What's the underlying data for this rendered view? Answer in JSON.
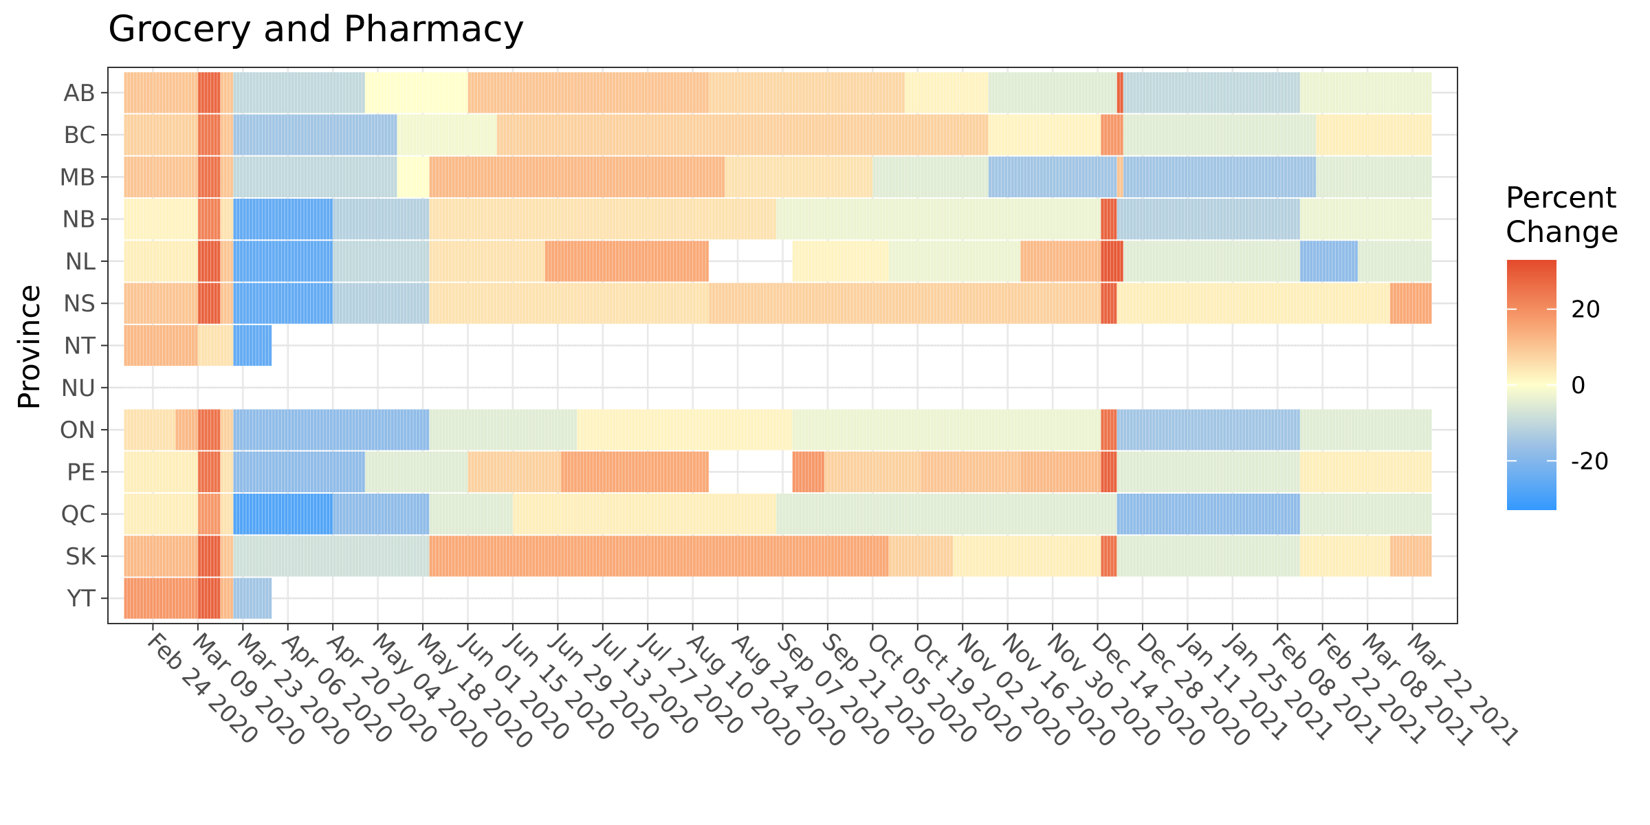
{
  "chart_data": {
    "type": "heatmap",
    "title": "Grocery and Pharmacy",
    "xlabel": "",
    "ylabel": "Province",
    "x_tick_labels": [
      "Feb 24 2020",
      "Mar 09 2020",
      "Mar 23 2020",
      "Apr 06 2020",
      "Apr 20 2020",
      "May 04 2020",
      "May 18 2020",
      "Jun 01 2020",
      "Jun 15 2020",
      "Jun 29 2020",
      "Jul 13 2020",
      "Jul 27 2020",
      "Aug 10 2020",
      "Aug 24 2020",
      "Sep 07 2020",
      "Sep 21 2020",
      "Oct 05 2020",
      "Oct 19 2020",
      "Nov 02 2020",
      "Nov 16 2020",
      "Nov 30 2020",
      "Dec 14 2020",
      "Dec 28 2020",
      "Jan 11 2021",
      "Jan 25 2021",
      "Feb 08 2021",
      "Feb 22 2021",
      "Mar 08 2021",
      "Mar 22 2021"
    ],
    "x_range": [
      "2020-02-10",
      "2021-04-05"
    ],
    "data_range": [
      "2020-02-15",
      "2021-03-28"
    ],
    "provinces": [
      "AB",
      "BC",
      "MB",
      "NB",
      "NL",
      "NS",
      "NT",
      "NU",
      "ON",
      "PE",
      "QC",
      "SK",
      "YT"
    ],
    "legend": {
      "title_lines": [
        "Percent",
        "Change"
      ],
      "ticks": [
        20,
        0,
        -20
      ],
      "tick_labels": [
        "20",
        "0",
        "-20"
      ],
      "range": [
        -33,
        33
      ],
      "position": "right"
    },
    "colors": {
      "low": "#3399ff",
      "mid": "#ffffcc",
      "high": "#e34a2b"
    },
    "grid": true,
    "series": [
      {
        "name": "AB",
        "segments": [
          {
            "start": "2020-02-15",
            "end": "2020-03-09",
            "value": 10
          },
          {
            "start": "2020-03-09",
            "end": "2020-03-16",
            "value": 27
          },
          {
            "start": "2020-03-16",
            "end": "2020-03-20",
            "value": 10
          },
          {
            "start": "2020-03-20",
            "end": "2020-04-30",
            "value": -10
          },
          {
            "start": "2020-04-30",
            "end": "2020-06-01",
            "value": 0
          },
          {
            "start": "2020-06-01",
            "end": "2020-08-15",
            "value": 10
          },
          {
            "start": "2020-08-15",
            "end": "2020-10-15",
            "value": 7
          },
          {
            "start": "2020-10-15",
            "end": "2020-11-10",
            "value": 2
          },
          {
            "start": "2020-11-10",
            "end": "2020-12-20",
            "value": -5
          },
          {
            "start": "2020-12-20",
            "end": "2020-12-22",
            "value": 28
          },
          {
            "start": "2020-12-22",
            "end": "2021-02-15",
            "value": -10
          },
          {
            "start": "2021-02-15",
            "end": "2021-03-28",
            "value": -3
          }
        ]
      },
      {
        "name": "BC",
        "segments": [
          {
            "start": "2020-02-15",
            "end": "2020-03-09",
            "value": 8
          },
          {
            "start": "2020-03-09",
            "end": "2020-03-16",
            "value": 24
          },
          {
            "start": "2020-03-16",
            "end": "2020-03-20",
            "value": 10
          },
          {
            "start": "2020-03-20",
            "end": "2020-05-10",
            "value": -15
          },
          {
            "start": "2020-05-10",
            "end": "2020-06-10",
            "value": -2
          },
          {
            "start": "2020-06-10",
            "end": "2020-11-10",
            "value": 8
          },
          {
            "start": "2020-11-10",
            "end": "2020-12-15",
            "value": 2
          },
          {
            "start": "2020-12-15",
            "end": "2020-12-22",
            "value": 18
          },
          {
            "start": "2020-12-22",
            "end": "2021-02-20",
            "value": -5
          },
          {
            "start": "2021-02-20",
            "end": "2021-03-28",
            "value": 3
          }
        ]
      },
      {
        "name": "MB",
        "segments": [
          {
            "start": "2020-02-15",
            "end": "2020-03-09",
            "value": 10
          },
          {
            "start": "2020-03-09",
            "end": "2020-03-16",
            "value": 25
          },
          {
            "start": "2020-03-16",
            "end": "2020-03-20",
            "value": 10
          },
          {
            "start": "2020-03-20",
            "end": "2020-05-10",
            "value": -10
          },
          {
            "start": "2020-05-10",
            "end": "2020-05-20",
            "value": 0
          },
          {
            "start": "2020-05-20",
            "end": "2020-08-20",
            "value": 12
          },
          {
            "start": "2020-08-20",
            "end": "2020-10-05",
            "value": 5
          },
          {
            "start": "2020-10-05",
            "end": "2020-11-10",
            "value": -5
          },
          {
            "start": "2020-11-10",
            "end": "2020-12-20",
            "value": -15
          },
          {
            "start": "2020-12-20",
            "end": "2020-12-22",
            "value": 10
          },
          {
            "start": "2020-12-22",
            "end": "2021-02-20",
            "value": -15
          },
          {
            "start": "2021-02-20",
            "end": "2021-03-28",
            "value": -5
          }
        ]
      },
      {
        "name": "NB",
        "segments": [
          {
            "start": "2020-02-15",
            "end": "2020-03-09",
            "value": 2
          },
          {
            "start": "2020-03-09",
            "end": "2020-03-16",
            "value": 22
          },
          {
            "start": "2020-03-16",
            "end": "2020-03-20",
            "value": 5
          },
          {
            "start": "2020-03-20",
            "end": "2020-04-20",
            "value": -25
          },
          {
            "start": "2020-04-20",
            "end": "2020-05-20",
            "value": -12
          },
          {
            "start": "2020-05-20",
            "end": "2020-09-05",
            "value": 5
          },
          {
            "start": "2020-09-05",
            "end": "2020-12-15",
            "value": -3
          },
          {
            "start": "2020-12-15",
            "end": "2020-12-20",
            "value": 28
          },
          {
            "start": "2020-12-20",
            "end": "2021-02-15",
            "value": -12
          },
          {
            "start": "2021-02-15",
            "end": "2021-03-28",
            "value": -3
          }
        ]
      },
      {
        "name": "NL",
        "segments": [
          {
            "start": "2020-02-15",
            "end": "2020-03-09",
            "value": 3
          },
          {
            "start": "2020-03-09",
            "end": "2020-03-16",
            "value": 28
          },
          {
            "start": "2020-03-16",
            "end": "2020-03-20",
            "value": 10
          },
          {
            "start": "2020-03-20",
            "end": "2020-04-20",
            "value": -25
          },
          {
            "start": "2020-04-20",
            "end": "2020-05-20",
            "value": -10
          },
          {
            "start": "2020-05-20",
            "end": "2020-06-25",
            "value": 5
          },
          {
            "start": "2020-06-25",
            "end": "2020-08-15",
            "value": 15
          },
          {
            "start": "2020-09-10",
            "end": "2020-10-10",
            "value": 2
          },
          {
            "start": "2020-10-10",
            "end": "2020-11-20",
            "value": -3
          },
          {
            "start": "2020-11-20",
            "end": "2020-12-15",
            "value": 12
          },
          {
            "start": "2020-12-15",
            "end": "2020-12-22",
            "value": 30
          },
          {
            "start": "2020-12-22",
            "end": "2021-02-15",
            "value": -5
          },
          {
            "start": "2021-02-15",
            "end": "2021-03-05",
            "value": -18
          },
          {
            "start": "2021-03-05",
            "end": "2021-03-28",
            "value": -5
          }
        ]
      },
      {
        "name": "NS",
        "segments": [
          {
            "start": "2020-02-15",
            "end": "2020-03-09",
            "value": 10
          },
          {
            "start": "2020-03-09",
            "end": "2020-03-16",
            "value": 28
          },
          {
            "start": "2020-03-16",
            "end": "2020-03-20",
            "value": 10
          },
          {
            "start": "2020-03-20",
            "end": "2020-04-20",
            "value": -25
          },
          {
            "start": "2020-04-20",
            "end": "2020-05-20",
            "value": -12
          },
          {
            "start": "2020-05-20",
            "end": "2020-08-15",
            "value": 5
          },
          {
            "start": "2020-08-15",
            "end": "2020-12-15",
            "value": 8
          },
          {
            "start": "2020-12-15",
            "end": "2020-12-20",
            "value": 28
          },
          {
            "start": "2020-12-20",
            "end": "2021-03-15",
            "value": 3
          },
          {
            "start": "2021-03-15",
            "end": "2021-03-28",
            "value": 15
          }
        ]
      },
      {
        "name": "NT",
        "segments": [
          {
            "start": "2020-02-15",
            "end": "2020-03-09",
            "value": 12
          },
          {
            "start": "2020-03-09",
            "end": "2020-03-20",
            "value": 5
          },
          {
            "start": "2020-03-20",
            "end": "2020-04-01",
            "value": -25
          }
        ]
      },
      {
        "name": "NU",
        "segments": []
      },
      {
        "name": "ON",
        "segments": [
          {
            "start": "2020-02-15",
            "end": "2020-03-02",
            "value": 5
          },
          {
            "start": "2020-03-02",
            "end": "2020-03-09",
            "value": 12
          },
          {
            "start": "2020-03-09",
            "end": "2020-03-16",
            "value": 25
          },
          {
            "start": "2020-03-16",
            "end": "2020-03-20",
            "value": 8
          },
          {
            "start": "2020-03-20",
            "end": "2020-05-20",
            "value": -18
          },
          {
            "start": "2020-05-20",
            "end": "2020-07-05",
            "value": -5
          },
          {
            "start": "2020-07-05",
            "end": "2020-09-10",
            "value": 2
          },
          {
            "start": "2020-09-10",
            "end": "2020-12-15",
            "value": -3
          },
          {
            "start": "2020-12-15",
            "end": "2020-12-20",
            "value": 25
          },
          {
            "start": "2020-12-20",
            "end": "2021-02-15",
            "value": -15
          },
          {
            "start": "2021-02-15",
            "end": "2021-03-28",
            "value": -5
          }
        ]
      },
      {
        "name": "PE",
        "segments": [
          {
            "start": "2020-02-15",
            "end": "2020-03-09",
            "value": 3
          },
          {
            "start": "2020-03-09",
            "end": "2020-03-16",
            "value": 25
          },
          {
            "start": "2020-03-16",
            "end": "2020-03-20",
            "value": 5
          },
          {
            "start": "2020-03-20",
            "end": "2020-04-30",
            "value": -18
          },
          {
            "start": "2020-04-30",
            "end": "2020-06-01",
            "value": -5
          },
          {
            "start": "2020-06-01",
            "end": "2020-06-30",
            "value": 8
          },
          {
            "start": "2020-06-30",
            "end": "2020-08-15",
            "value": 15
          },
          {
            "start": "2020-09-10",
            "end": "2020-09-20",
            "value": 18
          },
          {
            "start": "2020-09-20",
            "end": "2020-10-20",
            "value": 8
          },
          {
            "start": "2020-10-20",
            "end": "2020-11-20",
            "value": 10
          },
          {
            "start": "2020-11-20",
            "end": "2020-12-15",
            "value": 12
          },
          {
            "start": "2020-12-15",
            "end": "2020-12-20",
            "value": 28
          },
          {
            "start": "2020-12-20",
            "end": "2021-02-15",
            "value": -5
          },
          {
            "start": "2021-02-15",
            "end": "2021-03-28",
            "value": 3
          }
        ]
      },
      {
        "name": "QC",
        "segments": [
          {
            "start": "2020-02-15",
            "end": "2020-03-09",
            "value": 3
          },
          {
            "start": "2020-03-09",
            "end": "2020-03-16",
            "value": 18
          },
          {
            "start": "2020-03-16",
            "end": "2020-03-20",
            "value": 5
          },
          {
            "start": "2020-03-20",
            "end": "2020-04-20",
            "value": -28
          },
          {
            "start": "2020-04-20",
            "end": "2020-05-20",
            "value": -18
          },
          {
            "start": "2020-05-20",
            "end": "2020-06-15",
            "value": -5
          },
          {
            "start": "2020-06-15",
            "end": "2020-09-05",
            "value": 3
          },
          {
            "start": "2020-09-05",
            "end": "2020-12-20",
            "value": -5
          },
          {
            "start": "2020-12-20",
            "end": "2021-02-15",
            "value": -18
          },
          {
            "start": "2021-02-15",
            "end": "2021-03-28",
            "value": -5
          }
        ]
      },
      {
        "name": "SK",
        "segments": [
          {
            "start": "2020-02-15",
            "end": "2020-03-09",
            "value": 12
          },
          {
            "start": "2020-03-09",
            "end": "2020-03-16",
            "value": 28
          },
          {
            "start": "2020-03-16",
            "end": "2020-03-20",
            "value": 10
          },
          {
            "start": "2020-03-20",
            "end": "2020-05-20",
            "value": -8
          },
          {
            "start": "2020-05-20",
            "end": "2020-10-10",
            "value": 15
          },
          {
            "start": "2020-10-10",
            "end": "2020-10-30",
            "value": 8
          },
          {
            "start": "2020-10-30",
            "end": "2020-12-15",
            "value": 3
          },
          {
            "start": "2020-12-15",
            "end": "2020-12-20",
            "value": 25
          },
          {
            "start": "2020-12-20",
            "end": "2021-02-15",
            "value": -5
          },
          {
            "start": "2021-02-15",
            "end": "2021-03-15",
            "value": 3
          },
          {
            "start": "2021-03-15",
            "end": "2021-03-28",
            "value": 10
          }
        ]
      },
      {
        "name": "YT",
        "segments": [
          {
            "start": "2020-02-15",
            "end": "2020-03-09",
            "value": 18
          },
          {
            "start": "2020-03-09",
            "end": "2020-03-16",
            "value": 28
          },
          {
            "start": "2020-03-16",
            "end": "2020-03-20",
            "value": 12
          },
          {
            "start": "2020-03-20",
            "end": "2020-04-01",
            "value": -15
          }
        ]
      }
    ]
  }
}
